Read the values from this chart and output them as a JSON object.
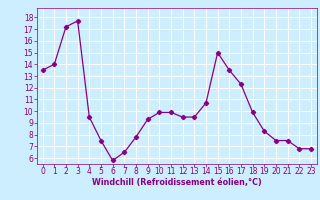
{
  "x": [
    0,
    1,
    2,
    3,
    4,
    5,
    6,
    7,
    8,
    9,
    10,
    11,
    12,
    13,
    14,
    15,
    16,
    17,
    18,
    19,
    20,
    21,
    22,
    23
  ],
  "y": [
    13.5,
    14.0,
    17.2,
    17.7,
    9.5,
    7.5,
    5.8,
    6.5,
    7.8,
    9.3,
    9.9,
    9.9,
    9.5,
    9.5,
    10.7,
    15.0,
    13.5,
    12.3,
    9.9,
    8.3,
    7.5,
    7.5,
    6.8,
    6.8
  ],
  "line_color": "#880088",
  "marker": "D",
  "marker_size": 2.2,
  "bg_color": "#cceeff",
  "grid_color": "#ffffff",
  "xlabel": "Windchill (Refroidissement éolien,°C)",
  "xlabel_color": "#880088",
  "tick_color": "#880088",
  "ylim": [
    5.5,
    18.8
  ],
  "xlim": [
    -0.5,
    23.5
  ],
  "yticks": [
    6,
    7,
    8,
    9,
    10,
    11,
    12,
    13,
    14,
    15,
    16,
    17,
    18
  ],
  "xticks": [
    0,
    1,
    2,
    3,
    4,
    5,
    6,
    7,
    8,
    9,
    10,
    11,
    12,
    13,
    14,
    15,
    16,
    17,
    18,
    19,
    20,
    21,
    22,
    23
  ],
  "tick_fontsize": 5.5,
  "xlabel_fontsize": 5.8,
  "spine_color": "#880088"
}
